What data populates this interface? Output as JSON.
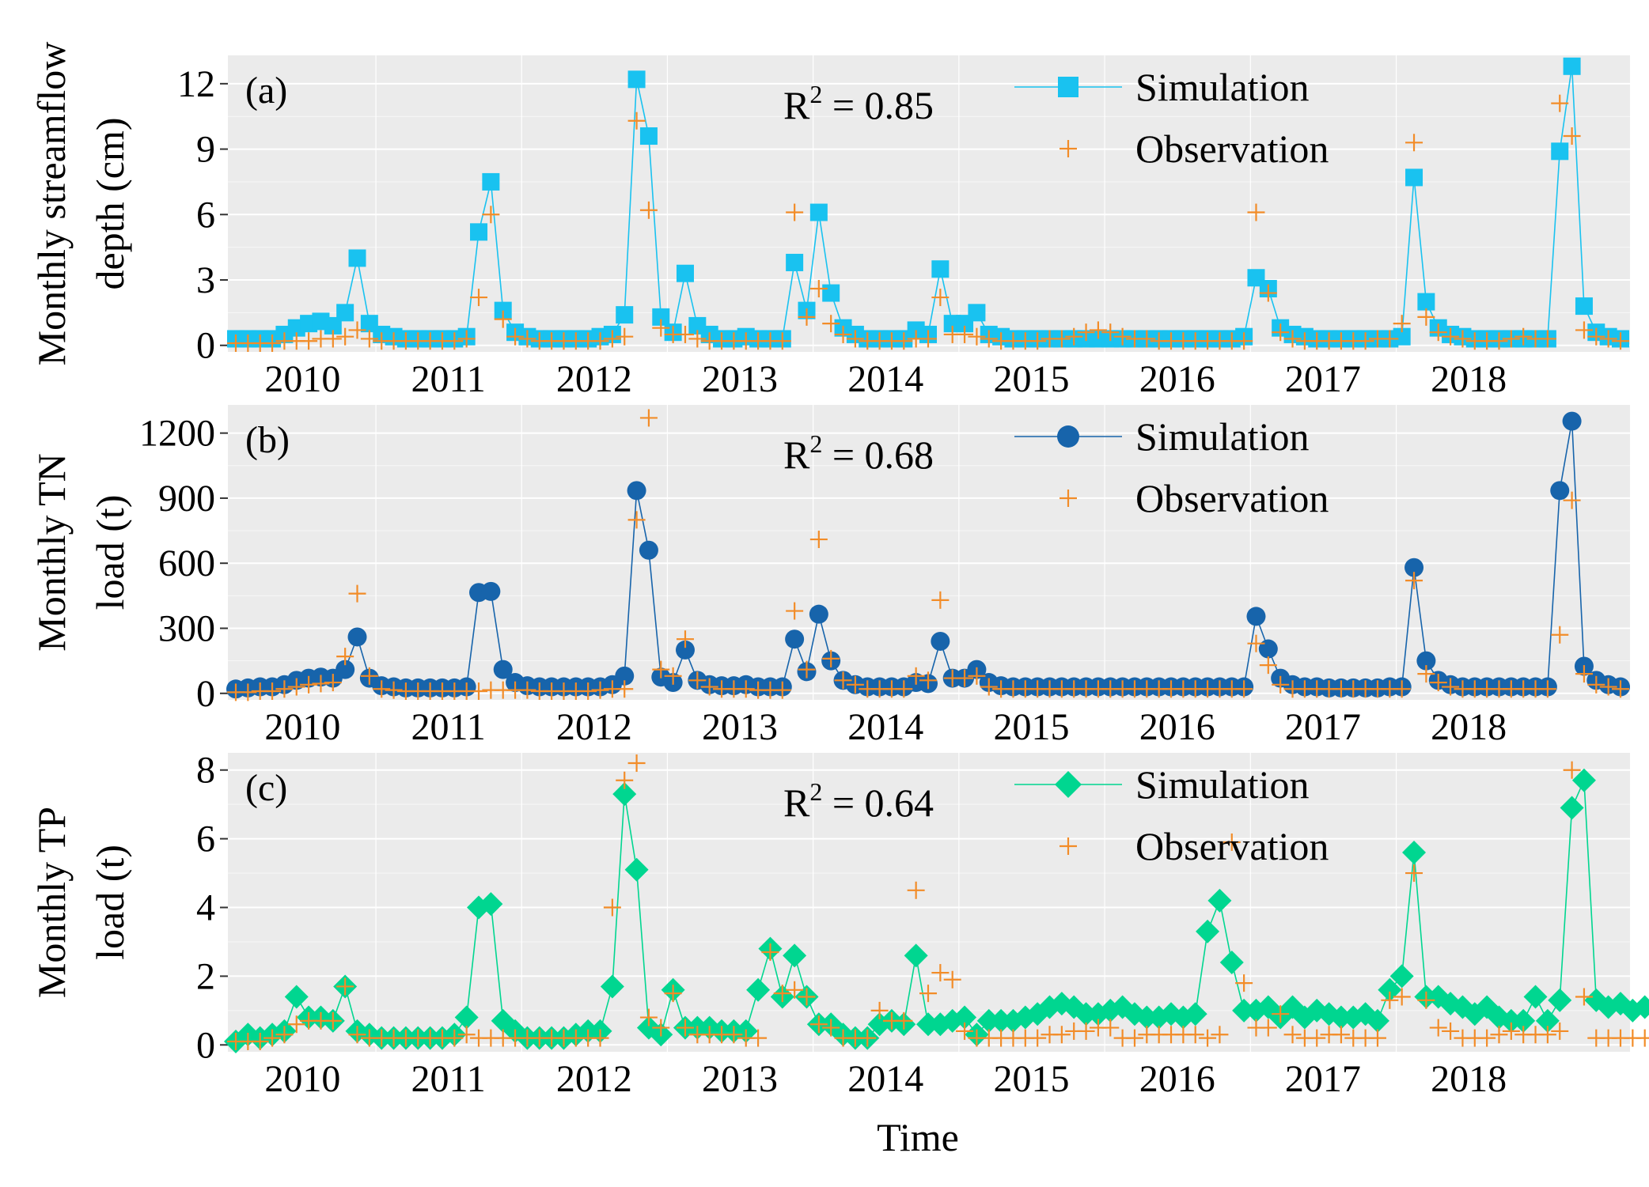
{
  "colors": {
    "panel_bg": "#ebebeb",
    "grid": "#ffffff",
    "observation": "#f28c28",
    "simulation_streamflow": "#19c2f0",
    "simulation_tn": "#1764ab",
    "simulation_tp": "#00d690"
  },
  "chart_data": [
    {
      "type": "line",
      "panel_label": "(a)",
      "ylabel": [
        "Monthly streamflow",
        "depth (cm)"
      ],
      "r2_label": "R",
      "r2_sup": "2",
      "r2_value": " = 0.85",
      "x_tick_labels": [
        "2010",
        "2011",
        "2012",
        "2013",
        "2014",
        "2015",
        "2016",
        "2017",
        "2018"
      ],
      "y_ticks": [
        0,
        3,
        6,
        9,
        12
      ],
      "ylim": [
        -0.3,
        13.3
      ],
      "legend_position": "top-right",
      "marker_simulation": "square",
      "legend": {
        "simulation": "Simulation",
        "observation": "Observation"
      },
      "x_start": "2010-01",
      "simulation": [
        0.3,
        0.3,
        0.3,
        0.3,
        0.5,
        0.8,
        1.0,
        1.1,
        0.9,
        1.5,
        4.0,
        1.0,
        0.5,
        0.4,
        0.3,
        0.3,
        0.3,
        0.3,
        0.3,
        0.4,
        5.2,
        7.5,
        1.6,
        0.6,
        0.4,
        0.3,
        0.3,
        0.3,
        0.3,
        0.3,
        0.4,
        0.5,
        1.4,
        12.2,
        9.6,
        1.3,
        0.6,
        3.3,
        0.9,
        0.5,
        0.3,
        0.3,
        0.4,
        0.3,
        0.3,
        0.3,
        3.8,
        1.6,
        6.1,
        2.4,
        0.8,
        0.5,
        0.3,
        0.3,
        0.3,
        0.3,
        0.7,
        0.5,
        3.5,
        1.0,
        1.0,
        1.5,
        0.5,
        0.4,
        0.3,
        0.3,
        0.3,
        0.3,
        0.3,
        0.3,
        0.3,
        0.3,
        0.3,
        0.3,
        0.3,
        0.3,
        0.3,
        0.3,
        0.3,
        0.3,
        0.3,
        0.3,
        0.3,
        0.4,
        3.1,
        2.6,
        0.8,
        0.5,
        0.4,
        0.3,
        0.3,
        0.3,
        0.3,
        0.3,
        0.3,
        0.3,
        0.4,
        7.7,
        2.0,
        0.8,
        0.5,
        0.4,
        0.3,
        0.3,
        0.3,
        0.3,
        0.3,
        0.3,
        0.3,
        8.9,
        12.8,
        1.8,
        0.6,
        0.4,
        0.3
      ],
      "observation": [
        0.1,
        0.1,
        0.1,
        0.1,
        0.2,
        0.2,
        0.2,
        0.3,
        0.3,
        0.4,
        0.7,
        0.3,
        0.2,
        0.2,
        0.2,
        0.2,
        0.2,
        0.2,
        0.2,
        0.3,
        2.2,
        6.0,
        1.2,
        0.4,
        0.3,
        0.2,
        0.2,
        0.2,
        0.2,
        0.2,
        0.2,
        0.3,
        0.4,
        10.3,
        6.2,
        0.8,
        0.5,
        0.5,
        0.3,
        0.2,
        0.2,
        0.2,
        0.2,
        0.2,
        0.2,
        0.2,
        6.1,
        1.3,
        2.6,
        1.0,
        0.5,
        0.3,
        0.2,
        0.2,
        0.2,
        0.2,
        0.3,
        0.3,
        2.2,
        0.5,
        0.5,
        0.4,
        0.3,
        0.2,
        0.2,
        0.2,
        0.2,
        0.3,
        0.3,
        0.4,
        0.6,
        0.7,
        0.6,
        0.4,
        0.3,
        0.3,
        0.2,
        0.2,
        0.2,
        0.2,
        0.2,
        0.2,
        0.2,
        0.2,
        6.1,
        2.4,
        0.6,
        0.3,
        0.2,
        0.2,
        0.2,
        0.2,
        0.2,
        0.2,
        0.3,
        0.3,
        1.0,
        9.3,
        1.3,
        0.6,
        0.4,
        0.3,
        0.2,
        0.2,
        0.2,
        0.3,
        0.4,
        0.3,
        0.3,
        11.1,
        9.6,
        0.7,
        0.4,
        0.3,
        0.2
      ]
    },
    {
      "type": "line",
      "panel_label": "(b)",
      "ylabel": [
        "Monthly TN",
        "load (t)"
      ],
      "r2_label": "R",
      "r2_sup": "2",
      "r2_value": " = 0.68",
      "x_tick_labels": [
        "2010",
        "2011",
        "2012",
        "2013",
        "2014",
        "2015",
        "2016",
        "2017",
        "2018"
      ],
      "y_ticks": [
        0,
        300,
        600,
        900,
        1200
      ],
      "ylim": [
        -30,
        1330
      ],
      "legend_position": "top-right",
      "marker_simulation": "circle",
      "legend": {
        "simulation": "Simulation",
        "observation": "Observation"
      },
      "x_start": "2010-01",
      "simulation": [
        20,
        25,
        30,
        30,
        40,
        60,
        70,
        75,
        70,
        110,
        260,
        70,
        35,
        30,
        25,
        25,
        25,
        25,
        25,
        30,
        465,
        470,
        110,
        50,
        35,
        30,
        30,
        30,
        30,
        30,
        30,
        40,
        80,
        935,
        660,
        75,
        50,
        200,
        60,
        40,
        35,
        35,
        40,
        30,
        30,
        30,
        250,
        100,
        365,
        150,
        60,
        40,
        30,
        30,
        30,
        30,
        50,
        45,
        240,
        70,
        70,
        110,
        50,
        35,
        30,
        30,
        30,
        30,
        30,
        30,
        30,
        30,
        30,
        30,
        30,
        30,
        30,
        30,
        30,
        30,
        30,
        30,
        30,
        30,
        355,
        205,
        70,
        40,
        30,
        30,
        25,
        25,
        25,
        25,
        25,
        30,
        30,
        580,
        150,
        60,
        40,
        30,
        30,
        30,
        30,
        30,
        30,
        30,
        30,
        935,
        1255,
        125,
        60,
        40,
        30
      ],
      "observation": [
        5,
        5,
        10,
        10,
        20,
        30,
        40,
        45,
        50,
        170,
        460,
        80,
        20,
        15,
        10,
        10,
        10,
        10,
        10,
        10,
        10,
        15,
        15,
        15,
        15,
        10,
        10,
        10,
        10,
        10,
        15,
        20,
        20,
        800,
        1270,
        110,
        80,
        250,
        60,
        30,
        20,
        20,
        20,
        15,
        15,
        15,
        380,
        110,
        710,
        160,
        60,
        40,
        20,
        20,
        20,
        20,
        80,
        60,
        430,
        70,
        70,
        80,
        30,
        20,
        20,
        20,
        20,
        20,
        20,
        20,
        20,
        20,
        20,
        20,
        20,
        20,
        20,
        20,
        20,
        20,
        20,
        20,
        20,
        20,
        230,
        130,
        40,
        20,
        20,
        20,
        20,
        20,
        20,
        20,
        20,
        20,
        20,
        520,
        90,
        50,
        30,
        20,
        20,
        20,
        20,
        20,
        20,
        20,
        20,
        270,
        890,
        90,
        40,
        30,
        20
      ]
    },
    {
      "type": "line",
      "panel_label": "(c)",
      "ylabel": [
        "Monthly TP",
        "load (t)"
      ],
      "r2_label": "R",
      "r2_sup": "2",
      "r2_value": " = 0.64",
      "x_tick_labels": [
        "2010",
        "2011",
        "2012",
        "2013",
        "2014",
        "2015",
        "2016",
        "2017",
        "2018"
      ],
      "y_ticks": [
        0,
        2,
        4,
        6,
        8
      ],
      "ylim": [
        -0.2,
        8.5
      ],
      "legend_position": "top-right",
      "marker_simulation": "diamond",
      "legend": {
        "simulation": "Simulation",
        "observation": "Observation"
      },
      "x_start": "2010-01",
      "simulation": [
        0.1,
        0.3,
        0.2,
        0.3,
        0.4,
        1.4,
        0.8,
        0.8,
        0.7,
        1.7,
        0.4,
        0.3,
        0.2,
        0.2,
        0.2,
        0.2,
        0.2,
        0.2,
        0.3,
        0.8,
        4.0,
        4.1,
        0.7,
        0.4,
        0.2,
        0.2,
        0.2,
        0.2,
        0.3,
        0.4,
        0.4,
        1.7,
        7.3,
        5.1,
        0.5,
        0.3,
        1.6,
        0.5,
        0.5,
        0.5,
        0.4,
        0.4,
        0.4,
        1.6,
        2.8,
        1.4,
        2.6,
        1.4,
        0.6,
        0.6,
        0.3,
        0.2,
        0.2,
        0.6,
        0.7,
        0.6,
        2.6,
        0.6,
        0.6,
        0.7,
        0.8,
        0.3,
        0.7,
        0.7,
        0.7,
        0.8,
        0.9,
        1.1,
        1.2,
        1.1,
        0.9,
        0.9,
        1.0,
        1.1,
        0.9,
        0.8,
        0.8,
        0.9,
        0.8,
        0.9,
        3.3,
        4.2,
        2.4,
        1.0,
        1.0,
        1.1,
        0.8,
        1.1,
        0.8,
        1.0,
        0.9,
        0.8,
        0.8,
        0.9,
        0.7,
        1.6,
        2.0,
        5.6,
        1.4,
        1.4,
        1.2,
        1.1,
        0.9,
        1.1,
        0.8,
        0.7,
        0.7,
        1.4,
        0.7,
        1.3,
        6.9,
        7.7,
        1.3,
        1.1,
        1.2,
        1.0,
        1.1
      ],
      "observation": [
        0.1,
        0.1,
        0.1,
        0.2,
        0.3,
        0.6,
        0.7,
        0.7,
        0.7,
        1.7,
        0.3,
        0.2,
        0.2,
        0.2,
        0.2,
        0.2,
        0.2,
        0.2,
        0.2,
        0.3,
        0.2,
        0.2,
        0.2,
        0.2,
        0.2,
        0.2,
        0.2,
        0.2,
        0.2,
        0.2,
        0.2,
        4.0,
        7.7,
        8.2,
        0.8,
        0.5,
        1.5,
        0.5,
        0.3,
        0.3,
        0.3,
        0.3,
        0.2,
        0.2,
        2.7,
        1.5,
        1.6,
        1.4,
        0.6,
        0.5,
        0.2,
        0.2,
        0.2,
        1.0,
        0.7,
        0.7,
        4.5,
        1.5,
        2.1,
        1.9,
        0.4,
        0.2,
        0.2,
        0.2,
        0.2,
        0.2,
        0.2,
        0.3,
        0.3,
        0.4,
        0.4,
        0.5,
        0.5,
        0.2,
        0.2,
        0.3,
        0.3,
        0.3,
        0.3,
        0.3,
        0.2,
        0.3,
        5.9,
        1.8,
        0.5,
        0.5,
        0.9,
        0.3,
        0.2,
        0.2,
        0.3,
        0.3,
        0.2,
        0.2,
        0.2,
        1.3,
        1.4,
        5.0,
        1.3,
        0.5,
        0.4,
        0.2,
        0.2,
        0.2,
        0.3,
        0.4,
        0.3,
        0.3,
        0.3,
        0.4,
        8.0,
        1.4,
        0.2,
        0.2,
        0.2,
        0.2,
        0.2
      ]
    }
  ],
  "xlabel": "Time"
}
